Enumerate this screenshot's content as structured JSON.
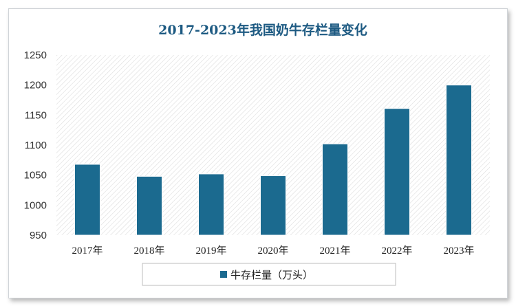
{
  "chart_data": {
    "type": "bar",
    "title": "2017-2023年我国奶牛存栏量变化",
    "categories": [
      "2017年",
      "2018年",
      "2019年",
      "2020年",
      "2021年",
      "2022年",
      "2023年"
    ],
    "series": [
      {
        "name": "牛存栏量（万头）",
        "values": [
          1068,
          1048,
          1052,
          1049,
          1102,
          1161,
          1200
        ]
      }
    ],
    "ylim": [
      950,
      1250
    ],
    "yticks": [
      950,
      1000,
      1050,
      1100,
      1150,
      1200,
      1250
    ],
    "xlabel": "",
    "ylabel": "",
    "legend_position": "bottom",
    "colors": {
      "bar": "#1b6a8f",
      "title": "#1d5a82"
    }
  }
}
